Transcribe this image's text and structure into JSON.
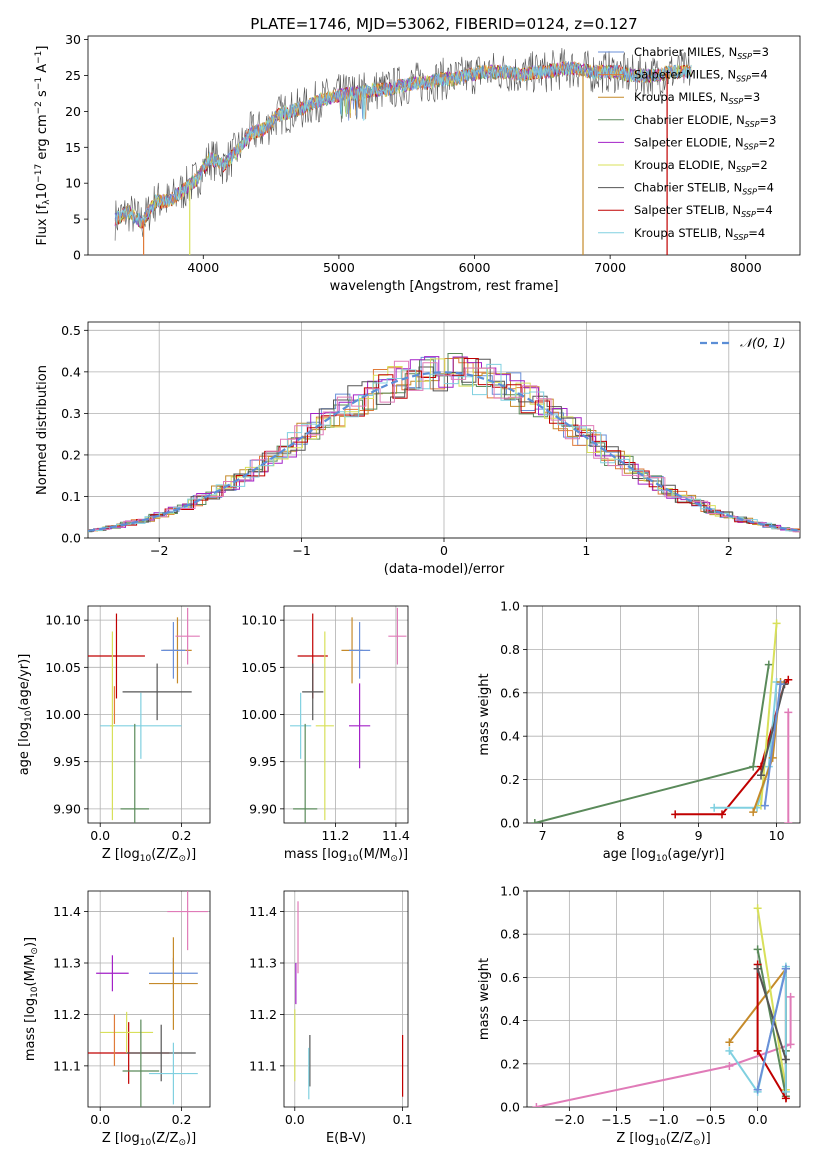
{
  "title": "PLATE=1746, MJD=53062, FIBERID=0124, z=0.127",
  "colors": {
    "Chabrier MILES": "#6a8fd8",
    "Salpeter MILES": "#e07b39",
    "Kroupa MILES": "#c58a2a",
    "Chabrier ELODIE": "#5a8a5a",
    "Salpeter ELODIE": "#a321c7",
    "Kroupa ELODIE": "#d8e05a",
    "Chabrier STELIB": "#555555",
    "Salpeter STELIB": "#c00000",
    "Kroupa STELIB": "#80d0e0",
    "Normal curve": "#5b8ed6",
    "Pink": "#e07bb8"
  },
  "legend_spectrum": [
    {
      "name": "Chabrier MILES, N",
      "sub": "SSP",
      "eq": "=3"
    },
    {
      "name": "Salpeter MILES, N",
      "sub": "SSP",
      "eq": "=4"
    },
    {
      "name": "Kroupa MILES, N",
      "sub": "SSP",
      "eq": "=3"
    },
    {
      "name": "Chabrier ELODIE, N",
      "sub": "SSP",
      "eq": "=3"
    },
    {
      "name": "Salpeter ELODIE, N",
      "sub": "SSP",
      "eq": "=2"
    },
    {
      "name": "Kroupa ELODIE, N",
      "sub": "SSP",
      "eq": "=2"
    },
    {
      "name": "Chabrier STELIB, N",
      "sub": "SSP",
      "eq": "=4"
    },
    {
      "name": "Salpeter STELIB, N",
      "sub": "SSP",
      "eq": "=4"
    },
    {
      "name": "Kroupa STELIB, N",
      "sub": "SSP",
      "eq": "=4"
    }
  ],
  "chart_data": [
    {
      "id": "spectrum",
      "type": "line",
      "title": "PLATE=1746, MJD=53062, FIBERID=0124, z=0.127",
      "xlabel": "wavelength [Angstrom, rest frame]",
      "ylabel_parts": [
        "Flux [f",
        "λ",
        "10",
        "−17",
        " erg cm",
        "−2",
        " s",
        "−1",
        " A",
        "−1",
        "]"
      ],
      "xlim": [
        3150,
        8400
      ],
      "ylim": [
        0,
        30.5
      ],
      "xticks": [
        4000,
        5000,
        6000,
        7000,
        8000
      ],
      "yticks": [
        0,
        5,
        10,
        15,
        20,
        25,
        30
      ],
      "continuum": {
        "x": [
          3350,
          3450,
          3550,
          3650,
          3750,
          3850,
          3950,
          4050,
          4150,
          4250,
          4350,
          4450,
          4550,
          4650,
          4750,
          4850,
          4950,
          5050,
          5150,
          5250,
          5350,
          5450,
          5550,
          5650,
          5750,
          5850,
          5950,
          6050,
          6150,
          6250,
          6350,
          6450,
          6550,
          6650,
          6750,
          6850,
          6950,
          7050,
          7150,
          7250,
          7350,
          7450,
          7550
        ],
        "y": [
          5.0,
          6.0,
          4.5,
          7.5,
          7.5,
          9.0,
          10.5,
          13.5,
          12.5,
          14.5,
          17.0,
          17.5,
          19.5,
          20.0,
          20.5,
          21.5,
          22.0,
          22.5,
          22.5,
          23.0,
          23.0,
          23.5,
          24.0,
          24.0,
          24.5,
          24.5,
          25.0,
          25.5,
          25.5,
          25.5,
          25.0,
          25.5,
          25.5,
          26.0,
          26.0,
          25.5,
          25.5,
          25.5,
          25.0,
          25.0,
          25.0,
          25.5,
          25.5
        ]
      },
      "drops": [
        {
          "series": "Kroupa ELODIE",
          "x": 3900
        },
        {
          "series": "Salpeter MILES",
          "x": 3560
        },
        {
          "series": "Kroupa MILES",
          "x": 6800
        },
        {
          "series": "Salpeter STELIB",
          "x": 7420
        }
      ]
    },
    {
      "id": "residuals",
      "type": "histogram",
      "xlabel": "(data-model)/error",
      "ylabel": "Normed distribution",
      "xlim": [
        -2.5,
        2.5
      ],
      "ylim": [
        0,
        0.52
      ],
      "xticks": [
        -2,
        -1,
        0,
        1,
        2
      ],
      "xtick_labels": [
        "−2",
        "−1",
        "0",
        "1",
        "2"
      ],
      "yticks": [
        0,
        0.1,
        0.2,
        0.3,
        0.4,
        0.5
      ],
      "ytick_labels": [
        "0.0",
        "0.1",
        "0.2",
        "0.3",
        "0.4",
        "0.5"
      ],
      "grid": true,
      "legend": "𝒩(0, 1)",
      "bin_width": 0.1
    },
    {
      "id": "age-vs-Z",
      "type": "errorbar",
      "xlabel_parts": [
        "Z [log",
        "10",
        "(Z/Z",
        "⊙",
        ")]"
      ],
      "ylabel_parts": [
        "age  [log",
        "10",
        "(age/yr)]"
      ],
      "xlim": [
        -0.03,
        0.27
      ],
      "ylim": [
        9.885,
        10.115
      ],
      "xticks": [
        0.0,
        0.2
      ],
      "xtick_labels": [
        "0.0",
        "0.2"
      ],
      "yticks": [
        9.9,
        9.95,
        10.0,
        10.05,
        10.1
      ],
      "ytick_labels": [
        "9.90",
        "9.95",
        "10.00",
        "10.05",
        "10.10"
      ],
      "points": [
        {
          "series": "Salpeter STELIB",
          "x": 0.04,
          "xerr": 0.07,
          "y": 10.062,
          "yerr": 0.045
        },
        {
          "series": "Kroupa MILES",
          "x": 0.19,
          "xerr": 0.035,
          "y": 10.068,
          "yerr": 0.035
        },
        {
          "series": "Chabrier MILES",
          "x": 0.18,
          "xerr": 0.03,
          "y": 10.068,
          "yerr": 0.03
        },
        {
          "series": "Pink",
          "x": 0.215,
          "xerr": 0.03,
          "y": 10.083,
          "yerr": 0.03
        },
        {
          "series": "Chabrier STELIB",
          "x": 0.14,
          "xerr": 0.085,
          "y": 10.024,
          "yerr": 0.03
        },
        {
          "series": "Kroupa STELIB",
          "x": 0.1,
          "xerr": 0.1,
          "y": 9.988,
          "yerr": 0.035
        },
        {
          "series": "Kroupa ELODIE",
          "x": 0.03,
          "xerr": 0.005,
          "y": 9.988,
          "yerr": 0.1
        },
        {
          "series": "Chabrier ELODIE",
          "x": 0.085,
          "xerr": 0.035,
          "y": 9.9,
          "yerr": 0.09
        },
        {
          "series": "Salpeter MILES",
          "x": 0.035,
          "xerr": 0.0,
          "y": 10.01,
          "yerr": 0.02
        }
      ]
    },
    {
      "id": "age-vs-mass",
      "type": "errorbar",
      "xlabel_parts": [
        "mass [log",
        "10",
        "(M/M",
        "⊙",
        ")]"
      ],
      "xlim": [
        11.03,
        11.44
      ],
      "ylim": [
        9.885,
        10.115
      ],
      "xticks": [
        11.2,
        11.4
      ],
      "xtick_labels": [
        "11.2",
        "11.4"
      ],
      "yticks": [
        9.9,
        9.95,
        10.0,
        10.05,
        10.1
      ],
      "ytick_labels": [
        "9.90",
        "9.95",
        "10.00",
        "10.05",
        "10.10"
      ],
      "points": [
        {
          "series": "Salpeter STELIB",
          "x": 11.125,
          "xerr": 0.05,
          "y": 10.062,
          "yerr": 0.045
        },
        {
          "series": "Kroupa MILES",
          "x": 11.255,
          "xerr": 0.035,
          "y": 10.068,
          "yerr": 0.035
        },
        {
          "series": "Chabrier MILES",
          "x": 11.28,
          "xerr": 0.035,
          "y": 10.068,
          "yerr": 0.03
        },
        {
          "series": "Pink",
          "x": 11.405,
          "xerr": 0.03,
          "y": 10.083,
          "yerr": 0.03
        },
        {
          "series": "Chabrier STELIB",
          "x": 11.125,
          "xerr": 0.035,
          "y": 10.024,
          "yerr": 0.03
        },
        {
          "series": "Kroupa STELIB",
          "x": 11.085,
          "xerr": 0.035,
          "y": 9.988,
          "yerr": 0.035
        },
        {
          "series": "Kroupa ELODIE",
          "x": 11.165,
          "xerr": 0.03,
          "y": 9.988,
          "yerr": 0.1
        },
        {
          "series": "Chabrier ELODIE",
          "x": 11.1,
          "xerr": 0.04,
          "y": 9.9,
          "yerr": 0.09
        },
        {
          "series": "Salpeter ELODIE",
          "x": 11.28,
          "xerr": 0.035,
          "y": 9.988,
          "yerr": 0.045
        }
      ]
    },
    {
      "id": "weight-vs-age",
      "type": "line",
      "xlabel_parts": [
        "age  [log",
        "10",
        "(age/yr)]"
      ],
      "ylabel": "mass weight",
      "xlim": [
        6.8,
        10.3
      ],
      "ylim": [
        0,
        1.0
      ],
      "xticks": [
        7,
        8,
        9,
        10
      ],
      "xtick_labels": [
        "7",
        "8",
        "9",
        "10"
      ],
      "yticks": [
        0,
        0.2,
        0.4,
        0.6,
        0.8,
        1.0
      ],
      "ytick_labels": [
        "0.0",
        "0.2",
        "0.4",
        "0.6",
        "0.8",
        "1.0"
      ],
      "series": [
        {
          "name": "Chabrier ELODIE",
          "x": [
            6.9,
            9.7,
            9.9
          ],
          "y": [
            0.0,
            0.26,
            0.73
          ]
        },
        {
          "name": "Salpeter STELIB",
          "x": [
            8.7,
            9.3,
            9.8,
            10.1,
            10.15
          ],
          "y": [
            0.04,
            0.04,
            0.26,
            0.64,
            0.66
          ]
        },
        {
          "name": "Kroupa STELIB",
          "x": [
            9.2,
            9.75,
            9.9,
            10.0
          ],
          "y": [
            0.07,
            0.07,
            0.26,
            0.65
          ]
        },
        {
          "name": "Kroupa ELODIE",
          "x": [
            9.8,
            10.0
          ],
          "y": [
            0.08,
            0.92
          ]
        },
        {
          "name": "Kroupa MILES",
          "x": [
            9.7,
            9.95,
            10.05
          ],
          "y": [
            0.05,
            0.3,
            0.65
          ]
        },
        {
          "name": "Chabrier STELIB",
          "x": [
            9.8,
            10.1
          ],
          "y": [
            0.22,
            0.64
          ]
        },
        {
          "name": "Chabrier MILES",
          "x": [
            9.85,
            10.05
          ],
          "y": [
            0.08,
            0.64
          ]
        },
        {
          "name": "Pink",
          "x": [
            10.15,
            10.15
          ],
          "y": [
            0.0,
            0.51
          ]
        }
      ]
    },
    {
      "id": "mass-vs-Z",
      "type": "errorbar",
      "xlabel_parts": [
        "Z [log",
        "10",
        "(Z/Z",
        "⊙",
        ")]"
      ],
      "ylabel_parts": [
        "mass [log",
        "10",
        "(M/M",
        "⊙",
        ")]"
      ],
      "xlim": [
        -0.03,
        0.27
      ],
      "ylim": [
        11.02,
        11.44
      ],
      "xticks": [
        0.0,
        0.2
      ],
      "xtick_labels": [
        "0.0",
        "0.2"
      ],
      "yticks": [
        11.1,
        11.2,
        11.3,
        11.4
      ],
      "ytick_labels": [
        "11.1",
        "11.2",
        "11.3",
        "11.4"
      ],
      "points": [
        {
          "series": "Salpeter STELIB",
          "x": 0.07,
          "xerr": 0.1,
          "y": 11.125,
          "yerr": 0.06
        },
        {
          "series": "Pink",
          "x": 0.215,
          "xerr": 0.05,
          "y": 11.4,
          "yerr": 0.075
        },
        {
          "series": "Salpeter ELODIE",
          "x": 0.03,
          "xerr": 0.04,
          "y": 11.28,
          "yerr": 0.035
        },
        {
          "series": "Chabrier MILES",
          "x": 0.18,
          "xerr": 0.06,
          "y": 11.28,
          "yerr": 0.03
        },
        {
          "series": "Kroupa MILES",
          "x": 0.18,
          "xerr": 0.06,
          "y": 11.26,
          "yerr": 0.09
        },
        {
          "series": "Kroupa ELODIE",
          "x": 0.065,
          "xerr": 0.065,
          "y": 11.165,
          "yerr": 0.04
        },
        {
          "series": "Chabrier STELIB",
          "x": 0.15,
          "xerr": 0.085,
          "y": 11.125,
          "yerr": 0.055
        },
        {
          "series": "Chabrier ELODIE",
          "x": 0.1,
          "xerr": 0.045,
          "y": 11.09,
          "yerr": 0.1
        },
        {
          "series": "Kroupa STELIB",
          "x": 0.18,
          "xerr": 0.06,
          "y": 11.085,
          "yerr": 0.06
        },
        {
          "series": "Salpeter MILES",
          "x": 0.035,
          "xerr": 0.0,
          "y": 11.15,
          "yerr": 0.05
        }
      ]
    },
    {
      "id": "mass-vs-ebv",
      "type": "errorbar",
      "xlabel": "E(B-V)",
      "xlim": [
        -0.01,
        0.105
      ],
      "ylim": [
        11.02,
        11.44
      ],
      "xticks": [
        0.0,
        0.1
      ],
      "xtick_labels": [
        "0.0",
        "0.1"
      ],
      "yticks": [
        11.1,
        11.2,
        11.3,
        11.4
      ],
      "ytick_labels": [
        "11.1",
        "11.2",
        "11.3",
        "11.4"
      ],
      "points": [
        {
          "series": "Pink",
          "x": 0.003,
          "y": 11.35,
          "yerr": 0.07
        },
        {
          "series": "Salpeter ELODIE",
          "x": 0.001,
          "y": 11.26,
          "yerr": 0.04
        },
        {
          "series": "Kroupa ELODIE",
          "x": 0.0,
          "y": 11.14,
          "yerr": 0.07
        },
        {
          "series": "Chabrier STELIB",
          "x": 0.014,
          "y": 11.11,
          "yerr": 0.05
        },
        {
          "series": "Kroupa STELIB",
          "x": 0.013,
          "y": 11.085,
          "yerr": 0.05
        },
        {
          "series": "Salpeter STELIB",
          "x": 0.1,
          "y": 11.1,
          "yerr": 0.06
        }
      ]
    },
    {
      "id": "weight-vs-Z",
      "type": "line",
      "xlabel_parts": [
        "Z [log",
        "10",
        "(Z/Z",
        "⊙",
        ")]"
      ],
      "ylabel": "mass weight",
      "xlim": [
        -2.45,
        0.45
      ],
      "ylim": [
        0,
        1.0
      ],
      "xticks": [
        -2.0,
        -1.5,
        -1.0,
        -0.5,
        0.0
      ],
      "xtick_labels": [
        "−2.0",
        "−1.5",
        "−1.0",
        "−0.5",
        "0.0"
      ],
      "yticks": [
        0,
        0.2,
        0.4,
        0.6,
        0.8,
        1.0
      ],
      "ytick_labels": [
        "0.0",
        "0.2",
        "0.4",
        "0.6",
        "0.8",
        "1.0"
      ],
      "series": [
        {
          "name": "Pink",
          "x": [
            -2.35,
            -0.3,
            0.35,
            0.35
          ],
          "y": [
            0.0,
            0.19,
            0.29,
            0.51
          ]
        },
        {
          "name": "Kroupa MILES",
          "x": [
            -0.3,
            0.3
          ],
          "y": [
            0.3,
            0.64
          ]
        },
        {
          "name": "Kroupa ELODIE",
          "x": [
            0.0,
            0.3
          ],
          "y": [
            0.92,
            0.08
          ]
        },
        {
          "name": "Chabrier ELODIE",
          "x": [
            0.0,
            0.3,
            0.3
          ],
          "y": [
            0.73,
            0.05,
            0.26
          ]
        },
        {
          "name": "Salpeter STELIB",
          "x": [
            0.0,
            0.0,
            0.3,
            0.3
          ],
          "y": [
            0.66,
            0.26,
            0.04,
            0.64
          ]
        },
        {
          "name": "Kroupa STELIB",
          "x": [
            -0.3,
            0.0,
            0.3,
            0.3
          ],
          "y": [
            0.26,
            0.07,
            0.65,
            0.07
          ]
        },
        {
          "name": "Chabrier STELIB",
          "x": [
            0.0,
            0.3
          ],
          "y": [
            0.64,
            0.22
          ]
        },
        {
          "name": "Chabrier MILES",
          "x": [
            0.0,
            0.3
          ],
          "y": [
            0.08,
            0.64
          ]
        }
      ]
    }
  ]
}
